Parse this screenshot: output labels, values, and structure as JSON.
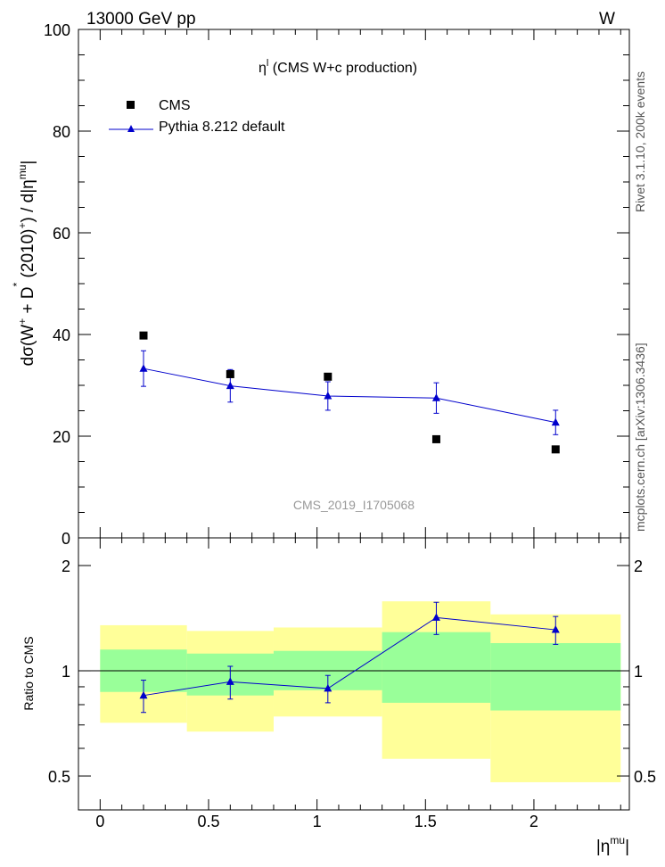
{
  "header": {
    "left": "13000 GeV pp",
    "right": "W"
  },
  "side_labels": {
    "rivet": "Rivet 3.1.10,  200k events",
    "mcplots": "mcplots.cern.ch [arXiv:1306.3436]"
  },
  "chart_data": {
    "type": "scatter",
    "title": "η^l (CMS W+c production)",
    "title_main": "η",
    "title_sup": "l",
    "title_rest": " (CMS W+c production)",
    "watermark": "CMS_2019_I1705068",
    "ylabel": "dσ(W+ + D*(2010)+) / d|ηmu|",
    "xlabel": "|ηmu|",
    "xlim": [
      -0.1,
      2.44
    ],
    "ylim": [
      0,
      100
    ],
    "x_ticks": [
      "0",
      "0.5",
      "1",
      "1.5",
      "2"
    ],
    "y_ticks": [
      "0",
      "20",
      "40",
      "60",
      "80",
      "100"
    ],
    "bin_edges": [
      0.0,
      0.4,
      0.8,
      1.3,
      1.8,
      2.4
    ],
    "x": [
      0.2,
      0.6,
      1.05,
      1.55,
      2.1
    ],
    "series": [
      {
        "name": "CMS",
        "marker": "square",
        "color": "#000000",
        "values": [
          39.8,
          32.2,
          31.7,
          19.4,
          17.4
        ]
      },
      {
        "name": "Pythia 8.212 default",
        "marker": "triangle",
        "color": "#0000cc",
        "values": [
          33.3,
          29.9,
          27.9,
          27.5,
          22.7
        ],
        "err_up": [
          3.5,
          3.2,
          2.8,
          3.0,
          2.4
        ],
        "err_down": [
          3.5,
          3.2,
          2.8,
          3.0,
          2.4
        ]
      }
    ],
    "ratio": {
      "ylabel": "Ratio to CMS",
      "ylim": [
        0.4,
        2.4
      ],
      "y_ticks": [
        "0.5",
        "1",
        "2"
      ],
      "values": [
        0.85,
        0.93,
        0.89,
        1.42,
        1.31
      ],
      "err": [
        0.09,
        0.1,
        0.08,
        0.15,
        0.12
      ],
      "band_outer": [
        [
          0.71,
          1.35
        ],
        [
          0.67,
          1.3
        ],
        [
          0.74,
          1.33
        ],
        [
          0.56,
          1.58
        ],
        [
          0.48,
          1.45
        ]
      ],
      "band_inner": [
        [
          0.87,
          1.15
        ],
        [
          0.85,
          1.12
        ],
        [
          0.88,
          1.14
        ],
        [
          0.81,
          1.29
        ],
        [
          0.77,
          1.2
        ]
      ],
      "band_outer_color": "#ffff99",
      "band_inner_color": "#99ff99"
    }
  }
}
